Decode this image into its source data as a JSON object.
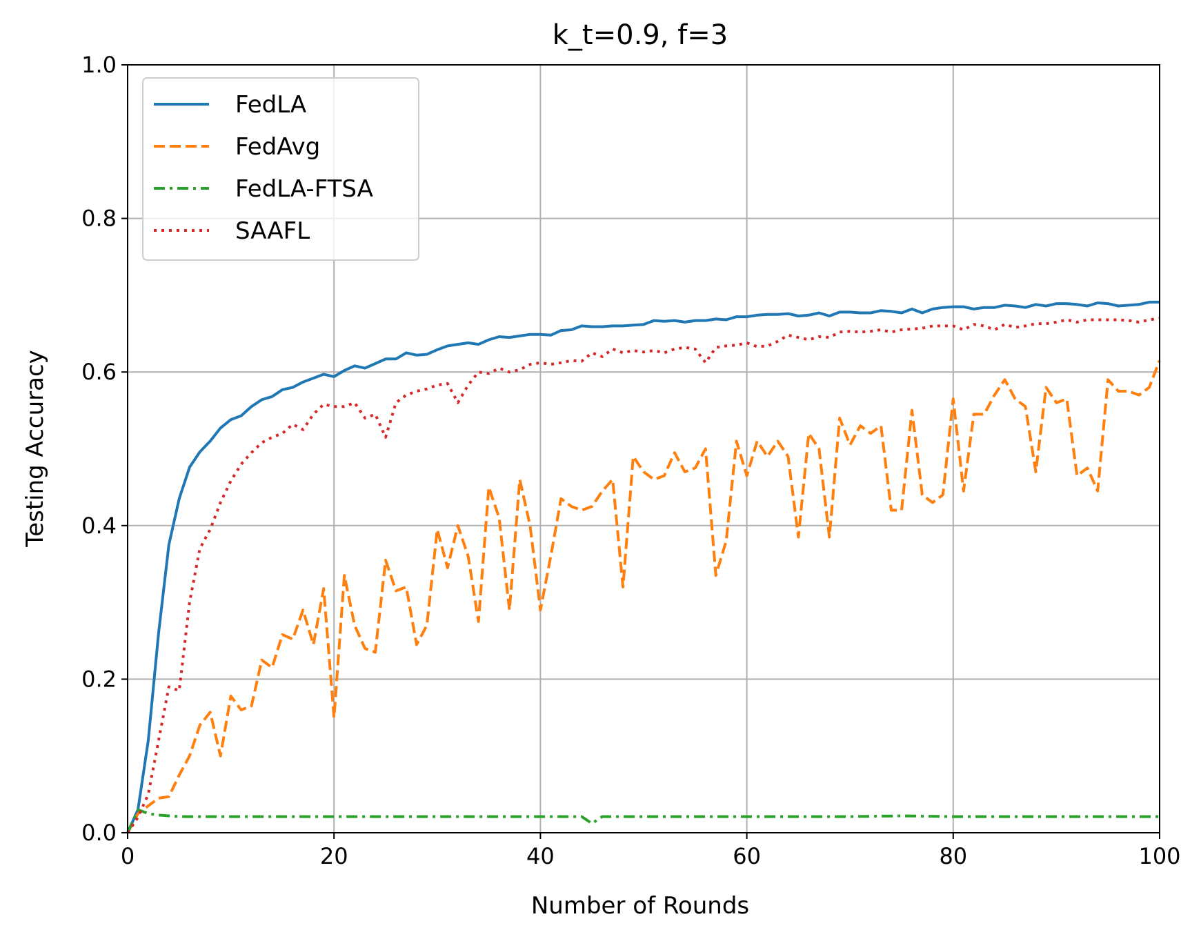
{
  "chart_data": {
    "type": "line",
    "title": "k_t=0.9, f=3",
    "xlabel": "Number of Rounds",
    "ylabel": "Testing Accuracy",
    "xlim": [
      0,
      100
    ],
    "ylim": [
      0.0,
      1.0
    ],
    "xticks": [
      "0",
      "20",
      "40",
      "60",
      "80",
      "100"
    ],
    "yticks": [
      "0.0",
      "0.2",
      "0.4",
      "0.6",
      "0.8",
      "1.0"
    ],
    "grid": true,
    "legend_position": "top-left",
    "series": [
      {
        "name": "FedLA",
        "color": "#1f77b4",
        "style": "solid",
        "x": [
          0,
          1,
          2,
          3,
          4,
          5,
          6,
          7,
          8,
          9,
          10,
          11,
          12,
          13,
          14,
          15,
          16,
          17,
          18,
          19,
          20,
          21,
          22,
          23,
          24,
          25,
          26,
          27,
          28,
          29,
          30,
          31,
          32,
          33,
          34,
          35,
          36,
          37,
          38,
          39,
          40,
          41,
          42,
          43,
          44,
          45,
          46,
          47,
          48,
          49,
          50,
          51,
          52,
          53,
          54,
          55,
          56,
          57,
          58,
          59,
          60,
          61,
          62,
          63,
          64,
          65,
          66,
          67,
          68,
          69,
          70,
          71,
          72,
          73,
          74,
          75,
          76,
          77,
          78,
          79,
          80,
          81,
          82,
          83,
          84,
          85,
          86,
          87,
          88,
          89,
          90,
          91,
          92,
          93,
          94,
          95,
          96,
          97,
          98,
          99,
          100
        ],
        "y": [
          0.0,
          0.03,
          0.12,
          0.26,
          0.375,
          0.435,
          0.476,
          0.496,
          0.51,
          0.527,
          0.538,
          0.543,
          0.555,
          0.564,
          0.568,
          0.577,
          0.58,
          0.587,
          0.592,
          0.597,
          0.594,
          0.602,
          0.608,
          0.605,
          0.611,
          0.617,
          0.617,
          0.625,
          0.622,
          0.623,
          0.629,
          0.634,
          0.636,
          0.638,
          0.636,
          0.642,
          0.646,
          0.645,
          0.647,
          0.649,
          0.649,
          0.648,
          0.654,
          0.655,
          0.66,
          0.659,
          0.659,
          0.66,
          0.66,
          0.661,
          0.662,
          0.667,
          0.666,
          0.667,
          0.665,
          0.667,
          0.667,
          0.669,
          0.668,
          0.672,
          0.672,
          0.674,
          0.675,
          0.675,
          0.676,
          0.673,
          0.674,
          0.677,
          0.673,
          0.678,
          0.678,
          0.677,
          0.677,
          0.68,
          0.679,
          0.677,
          0.682,
          0.677,
          0.682,
          0.684,
          0.685,
          0.685,
          0.682,
          0.684,
          0.684,
          0.687,
          0.686,
          0.684,
          0.688,
          0.686,
          0.689,
          0.689,
          0.688,
          0.686,
          0.69,
          0.689,
          0.686,
          0.687,
          0.688,
          0.691,
          0.691
        ]
      },
      {
        "name": "FedAvg",
        "color": "#ff7f0e",
        "style": "dashed",
        "x": [
          0,
          1,
          2,
          3,
          4,
          5,
          6,
          7,
          8,
          9,
          10,
          11,
          12,
          13,
          14,
          15,
          16,
          17,
          18,
          19,
          20,
          21,
          22,
          23,
          24,
          25,
          26,
          27,
          28,
          29,
          30,
          31,
          32,
          33,
          34,
          35,
          36,
          37,
          38,
          39,
          40,
          41,
          42,
          43,
          44,
          45,
          46,
          47,
          48,
          49,
          50,
          51,
          52,
          53,
          54,
          55,
          56,
          57,
          58,
          59,
          60,
          61,
          62,
          63,
          64,
          65,
          66,
          67,
          68,
          69,
          70,
          71,
          72,
          73,
          74,
          75,
          76,
          77,
          78,
          79,
          80,
          81,
          82,
          83,
          84,
          85,
          86,
          87,
          88,
          89,
          90,
          91,
          92,
          93,
          94,
          95,
          96,
          97,
          98,
          99,
          100
        ],
        "y": [
          0.0,
          0.025,
          0.035,
          0.045,
          0.047,
          0.075,
          0.1,
          0.14,
          0.157,
          0.1,
          0.178,
          0.16,
          0.165,
          0.225,
          0.215,
          0.258,
          0.252,
          0.29,
          0.245,
          0.318,
          0.15,
          0.335,
          0.27,
          0.24,
          0.235,
          0.355,
          0.315,
          0.32,
          0.245,
          0.27,
          0.395,
          0.345,
          0.4,
          0.36,
          0.275,
          0.45,
          0.41,
          0.29,
          0.46,
          0.4,
          0.29,
          0.36,
          0.435,
          0.425,
          0.42,
          0.425,
          0.445,
          0.46,
          0.32,
          0.49,
          0.47,
          0.46,
          0.465,
          0.495,
          0.47,
          0.475,
          0.5,
          0.335,
          0.38,
          0.51,
          0.465,
          0.51,
          0.49,
          0.51,
          0.49,
          0.385,
          0.52,
          0.5,
          0.385,
          0.54,
          0.505,
          0.53,
          0.52,
          0.53,
          0.42,
          0.42,
          0.55,
          0.44,
          0.43,
          0.44,
          0.565,
          0.445,
          0.545,
          0.545,
          0.57,
          0.59,
          0.565,
          0.555,
          0.47,
          0.58,
          0.56,
          0.565,
          0.465,
          0.475,
          0.445,
          0.59,
          0.575,
          0.575,
          0.57,
          0.58,
          0.615
        ]
      },
      {
        "name": "FedLA-FTSA",
        "color": "#2ca02c",
        "style": "dashdot",
        "x": [
          0,
          1,
          2,
          3,
          4,
          5,
          10,
          20,
          30,
          40,
          44,
          45,
          46,
          50,
          60,
          70,
          75,
          80,
          90,
          100
        ],
        "y": [
          0.0,
          0.03,
          0.025,
          0.023,
          0.022,
          0.021,
          0.021,
          0.021,
          0.021,
          0.021,
          0.021,
          0.012,
          0.021,
          0.021,
          0.021,
          0.021,
          0.022,
          0.021,
          0.021,
          0.021
        ]
      },
      {
        "name": "SAAFL",
        "color": "#d62728",
        "style": "dotted",
        "x": [
          0,
          1,
          2,
          3,
          4,
          5,
          6,
          7,
          8,
          9,
          10,
          11,
          12,
          13,
          14,
          15,
          16,
          17,
          18,
          19,
          20,
          21,
          22,
          23,
          24,
          25,
          26,
          27,
          28,
          29,
          30,
          31,
          32,
          33,
          34,
          35,
          36,
          37,
          38,
          39,
          40,
          41,
          42,
          43,
          44,
          45,
          46,
          47,
          48,
          49,
          50,
          51,
          52,
          53,
          54,
          55,
          56,
          57,
          58,
          59,
          60,
          61,
          62,
          63,
          64,
          65,
          66,
          67,
          68,
          69,
          70,
          71,
          72,
          73,
          74,
          75,
          76,
          77,
          78,
          79,
          80,
          81,
          82,
          83,
          84,
          85,
          86,
          87,
          88,
          89,
          90,
          91,
          92,
          93,
          94,
          95,
          96,
          97,
          98,
          99,
          100
        ],
        "y": [
          0.0,
          0.02,
          0.05,
          0.12,
          0.19,
          0.185,
          0.3,
          0.37,
          0.395,
          0.43,
          0.458,
          0.48,
          0.495,
          0.508,
          0.515,
          0.52,
          0.532,
          0.525,
          0.545,
          0.558,
          0.555,
          0.555,
          0.56,
          0.54,
          0.545,
          0.515,
          0.56,
          0.57,
          0.575,
          0.578,
          0.583,
          0.585,
          0.56,
          0.583,
          0.6,
          0.598,
          0.605,
          0.6,
          0.603,
          0.61,
          0.612,
          0.61,
          0.612,
          0.615,
          0.614,
          0.625,
          0.62,
          0.63,
          0.625,
          0.628,
          0.626,
          0.628,
          0.625,
          0.63,
          0.632,
          0.63,
          0.612,
          0.632,
          0.634,
          0.635,
          0.638,
          0.633,
          0.634,
          0.64,
          0.648,
          0.645,
          0.642,
          0.646,
          0.645,
          0.652,
          0.653,
          0.652,
          0.653,
          0.655,
          0.652,
          0.655,
          0.656,
          0.657,
          0.66,
          0.66,
          0.66,
          0.655,
          0.662,
          0.66,
          0.655,
          0.662,
          0.658,
          0.66,
          0.663,
          0.663,
          0.665,
          0.668,
          0.665,
          0.668,
          0.668,
          0.668,
          0.668,
          0.667,
          0.665,
          0.668,
          0.67
        ]
      }
    ]
  }
}
